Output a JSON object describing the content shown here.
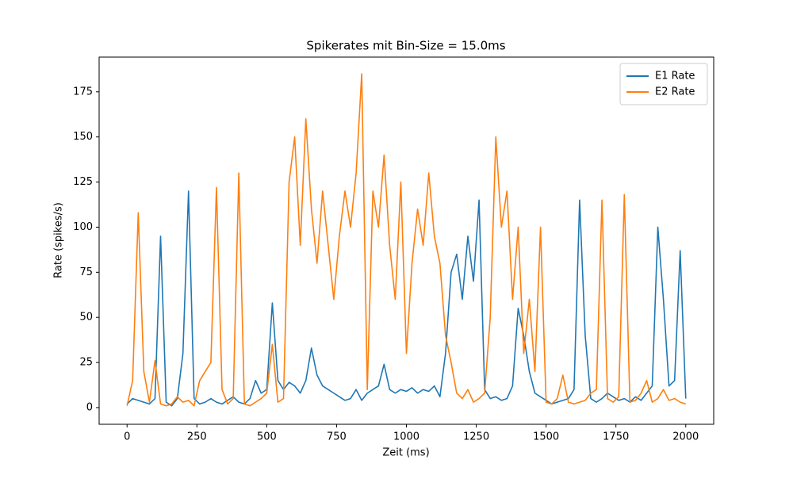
{
  "chart_data": {
    "type": "line",
    "title": "Spikerates mit Bin-Size = 15.0ms",
    "x_label": "Zeit (ms)",
    "y_label": "Rate (spikes/s)",
    "x": [
      0,
      20,
      40,
      60,
      80,
      100,
      120,
      140,
      160,
      180,
      200,
      220,
      240,
      260,
      280,
      300,
      320,
      340,
      360,
      380,
      400,
      420,
      440,
      460,
      480,
      500,
      520,
      540,
      560,
      580,
      600,
      620,
      640,
      660,
      680,
      700,
      720,
      740,
      760,
      780,
      800,
      820,
      840,
      860,
      880,
      900,
      920,
      940,
      960,
      980,
      1000,
      1020,
      1040,
      1060,
      1080,
      1100,
      1120,
      1140,
      1160,
      1180,
      1200,
      1220,
      1240,
      1260,
      1280,
      1300,
      1320,
      1340,
      1360,
      1380,
      1400,
      1420,
      1440,
      1460,
      1480,
      1500,
      1520,
      1540,
      1560,
      1580,
      1600,
      1620,
      1640,
      1660,
      1680,
      1700,
      1720,
      1740,
      1760,
      1780,
      1800,
      1820,
      1840,
      1860,
      1880,
      1900,
      1920,
      1940,
      1960,
      1980,
      2000
    ],
    "series": [
      {
        "name": "E1 Rate",
        "color": "#1f77b4",
        "values": [
          2,
          5,
          4,
          3,
          2,
          5,
          95,
          3,
          1,
          5,
          30,
          120,
          5,
          2,
          3,
          5,
          3,
          2,
          4,
          6,
          3,
          2,
          5,
          15,
          8,
          10,
          58,
          15,
          10,
          14,
          12,
          8,
          15,
          33,
          18,
          12,
          10,
          8,
          6,
          4,
          5,
          10,
          4,
          8,
          10,
          12,
          24,
          10,
          8,
          10,
          9,
          11,
          8,
          10,
          9,
          12,
          6,
          30,
          75,
          85,
          60,
          95,
          70,
          115,
          10,
          5,
          6,
          4,
          5,
          12,
          55,
          40,
          20,
          8,
          6,
          4,
          2,
          3,
          4,
          5,
          10,
          115,
          40,
          5,
          3,
          5,
          8,
          6,
          4,
          5,
          3,
          6,
          4,
          8,
          12,
          100,
          60,
          12,
          15,
          87,
          5
        ]
      },
      {
        "name": "E2 Rate",
        "color": "#ff7f0e",
        "values": [
          1,
          15,
          108,
          20,
          3,
          26,
          2,
          1,
          2,
          6,
          3,
          4,
          1,
          15,
          20,
          25,
          122,
          10,
          2,
          5,
          130,
          2,
          1,
          3,
          5,
          8,
          35,
          3,
          5,
          125,
          150,
          90,
          160,
          110,
          80,
          120,
          90,
          60,
          95,
          120,
          100,
          130,
          185,
          10,
          120,
          100,
          140,
          90,
          60,
          125,
          30,
          80,
          110,
          90,
          130,
          95,
          80,
          40,
          25,
          8,
          5,
          10,
          3,
          5,
          8,
          50,
          150,
          100,
          120,
          60,
          100,
          30,
          60,
          20,
          100,
          3,
          2,
          5,
          18,
          3,
          2,
          3,
          4,
          8,
          10,
          115,
          5,
          3,
          6,
          118,
          3,
          4,
          8,
          15,
          3,
          5,
          10,
          4,
          5,
          3,
          2
        ]
      }
    ],
    "xlim": [
      -100,
      2100
    ],
    "ylim": [
      -9.25,
      194.25
    ],
    "xticks": [
      0,
      250,
      500,
      750,
      1000,
      1250,
      1500,
      1750,
      2000
    ],
    "yticks": [
      0,
      25,
      50,
      75,
      100,
      125,
      150,
      175
    ],
    "legend": "upper right",
    "grid": false
  }
}
